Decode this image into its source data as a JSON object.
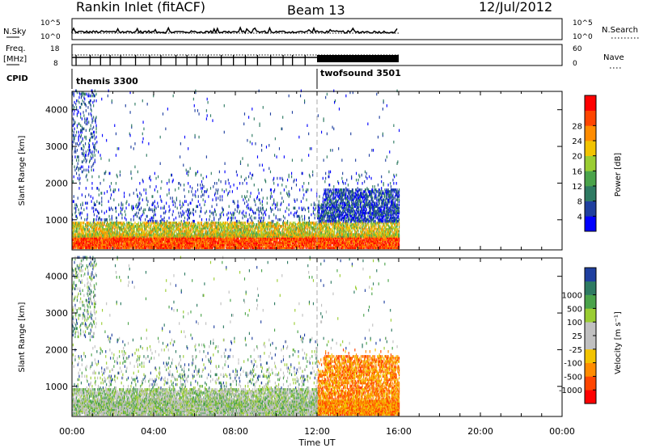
{
  "header": {
    "title": "Rankin Inlet (fitACF)",
    "beam": "Beam 13",
    "date": "12/Jul/2012"
  },
  "strip": {
    "nsky_label": "N.Sky",
    "nsky_ticks": [
      "10^5",
      "10^0"
    ],
    "nsearch_label": "N.Search",
    "nsearch_ticks": [
      "10^5",
      "10^0"
    ],
    "freq_label_1": "Freq.",
    "freq_label_2": "[MHz]",
    "freq_ticks": [
      "18",
      "8"
    ],
    "nave_label": "Nave",
    "nave_ticks": [
      "60",
      "0"
    ],
    "cpid_label": "CPID",
    "cpid_modes": [
      {
        "name": "themis 3300",
        "start_hour": 0
      },
      {
        "name": "twofsound 3501",
        "start_hour": 12
      }
    ]
  },
  "colors": {
    "power_scale": [
      "#0000ff",
      "#1f3f9f",
      "#2e7a62",
      "#4aa34a",
      "#9acd32",
      "#f2c300",
      "#ff8c00",
      "#ff4500",
      "#ff0000"
    ],
    "velocity_scale": [
      "#ff0000",
      "#ff4500",
      "#ff8c00",
      "#f2c300",
      "#c0c0c0",
      "#c0c0c0",
      "#9acd32",
      "#4aa34a",
      "#2e7a62",
      "#1f3f9f"
    ]
  },
  "chart_data": [
    {
      "type": "heatmap",
      "panel": "power",
      "ylabel": "Slant Range [km]",
      "ylim": [
        180,
        4500
      ],
      "yticks": [
        "1000",
        "2000",
        "3000",
        "4000"
      ],
      "xlim": [
        0,
        24
      ],
      "colorbar_label": "Power [dB]",
      "colorbar_ticks": [
        "4",
        "8",
        "12",
        "16",
        "20",
        "24",
        "28"
      ],
      "data_end_hour": 16,
      "mode_change_hour": 12
    },
    {
      "type": "heatmap",
      "panel": "velocity",
      "ylabel": "Slant Range [km]",
      "ylim": [
        180,
        4500
      ],
      "yticks": [
        "1000",
        "2000",
        "3000",
        "4000"
      ],
      "xlim": [
        0,
        24
      ],
      "xlabel": "Time UT",
      "xticks": [
        "00:00",
        "04:00",
        "08:00",
        "12:00",
        "16:00",
        "20:00",
        "00:00"
      ],
      "colorbar_label": "Velocity [m s⁻¹]",
      "colorbar_ticks": [
        "1000",
        "500",
        "100",
        "25",
        "-25",
        "-100",
        "-500",
        "-1000"
      ],
      "data_end_hour": 16,
      "mode_change_hour": 12
    }
  ]
}
